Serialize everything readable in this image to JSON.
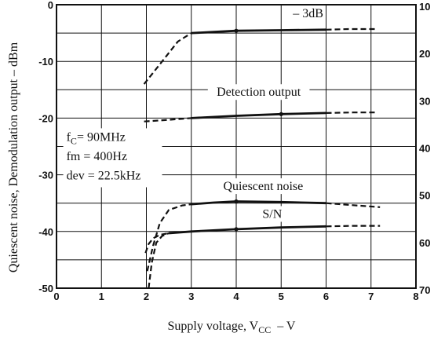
{
  "chart_data": {
    "type": "line",
    "xlabel": "Supply voltage, V",
    "xlabel_sub": "CC",
    "xlabel_unit": "–   V",
    "ylabel": "Quiescent noise, Demodulation output  –  dBm",
    "xlim": [
      0,
      8
    ],
    "ylim": [
      -50,
      0
    ],
    "x_ticks": [
      "0",
      "1",
      "2",
      "3",
      "4",
      "5",
      "6",
      "7",
      "8"
    ],
    "y_ticks_left": [
      "0",
      "-10",
      "-20",
      "-30",
      "-40",
      "-50"
    ],
    "y_ticks_right": [
      "10",
      "20",
      "30",
      "40",
      "50",
      "60",
      "70"
    ],
    "grid": true,
    "conditions": {
      "fc_prefix": "f",
      "fc_sub": "C",
      "fc_value": "= 90MHz",
      "fm": "fm = 400Hz",
      "dev": "dev = 22.5kHz"
    },
    "series": [
      {
        "name": "– 3dB",
        "dashed_low": [
          [
            1.95,
            -14.0
          ],
          [
            2.3,
            -10.5
          ],
          [
            2.7,
            -6.5
          ],
          [
            3.0,
            -5.0
          ]
        ],
        "solid": [
          [
            3.0,
            -5.0
          ],
          [
            3.5,
            -4.8
          ],
          [
            4.0,
            -4.6
          ],
          [
            5.0,
            -4.5
          ],
          [
            6.0,
            -4.4
          ]
        ],
        "dashed_high": [
          [
            6.0,
            -4.4
          ],
          [
            6.5,
            -4.3
          ],
          [
            7.1,
            -4.3
          ]
        ]
      },
      {
        "name": "Detection output",
        "dashed_low": [
          [
            1.95,
            -20.6
          ],
          [
            2.5,
            -20.3
          ],
          [
            3.0,
            -20.0
          ]
        ],
        "solid": [
          [
            3.0,
            -20.0
          ],
          [
            4.0,
            -19.6
          ],
          [
            5.0,
            -19.3
          ],
          [
            6.0,
            -19.1
          ]
        ],
        "dashed_high": [
          [
            6.0,
            -19.1
          ],
          [
            6.6,
            -19.0
          ],
          [
            7.1,
            -19.0
          ]
        ]
      },
      {
        "name": "Quiescent noise",
        "dashed_low": [
          [
            2.02,
            -47.0
          ],
          [
            2.15,
            -42.5
          ],
          [
            2.3,
            -38.5
          ],
          [
            2.5,
            -36.2
          ],
          [
            2.8,
            -35.4
          ],
          [
            3.0,
            -35.2
          ]
        ],
        "solid": [
          [
            3.0,
            -35.2
          ],
          [
            3.5,
            -34.9
          ],
          [
            4.0,
            -34.7
          ],
          [
            5.0,
            -34.8
          ],
          [
            6.0,
            -35.0
          ]
        ],
        "dashed_high": [
          [
            6.0,
            -35.0
          ],
          [
            6.5,
            -35.3
          ],
          [
            7.2,
            -35.7
          ]
        ]
      },
      {
        "name": "S/N",
        "dashed_low": [
          [
            2.05,
            -50.0
          ],
          [
            2.12,
            -45.5
          ],
          [
            2.22,
            -42.0
          ],
          [
            2.35,
            -40.8
          ],
          [
            2.5,
            -40.3
          ]
        ],
        "solid": [
          [
            2.5,
            -40.3
          ],
          [
            3.0,
            -40.0
          ],
          [
            4.0,
            -39.6
          ],
          [
            5.0,
            -39.3
          ],
          [
            6.0,
            -39.1
          ]
        ],
        "dashed_high": [
          [
            6.0,
            -39.1
          ],
          [
            6.6,
            -39.0
          ],
          [
            7.2,
            -39.0
          ]
        ]
      }
    ],
    "extra_dashed": [
      [
        [
          1.98,
          -43.8
        ],
        [
          2.05,
          -42.2
        ],
        [
          2.15,
          -41.2
        ],
        [
          2.3,
          -40.6
        ],
        [
          2.5,
          -40.3
        ]
      ]
    ]
  }
}
